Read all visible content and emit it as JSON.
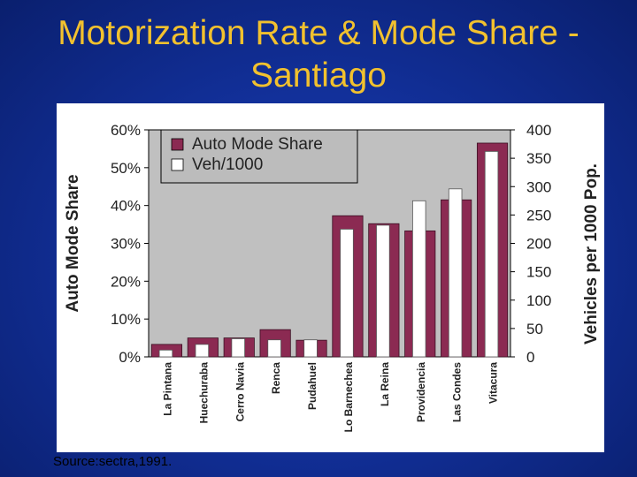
{
  "slide": {
    "title_line1": "Motorization Rate & Mode Share -",
    "title_line2": "Santiago",
    "source": "Source:sectra,1991."
  },
  "chart_data": {
    "type": "bar",
    "title": "",
    "categories": [
      "La Pintana",
      "Huechuraba",
      "Cerro Navia",
      "Renca",
      "Pudahuel",
      "Lo Barnechea",
      "La Reina",
      "Providencia",
      "Las Condes",
      "Vitacura"
    ],
    "series": [
      {
        "name": "Auto Mode Share",
        "axis": "left",
        "color": "#8b2a52",
        "values": [
          3.3,
          5.0,
          5.0,
          7.2,
          4.4,
          37.3,
          35.2,
          33.3,
          41.5,
          56.5
        ]
      },
      {
        "name": "Veh/1000",
        "axis": "right",
        "color": "#ffffff",
        "values": [
          12,
          22,
          32,
          30,
          30,
          225,
          232,
          275,
          296,
          362
        ]
      }
    ],
    "ylabel": "Auto Mode Share",
    "y2label": "Vehicles per 1000 Pop.",
    "ylim": [
      0,
      60
    ],
    "y2lim": [
      0,
      400
    ],
    "yticks": [
      "0%",
      "10%",
      "20%",
      "30%",
      "40%",
      "50%",
      "60%"
    ],
    "y2ticks": [
      "0",
      "50",
      "100",
      "150",
      "200",
      "250",
      "300",
      "350",
      "400"
    ],
    "legend": "top-left",
    "plot_background": "#c0c0c0"
  }
}
